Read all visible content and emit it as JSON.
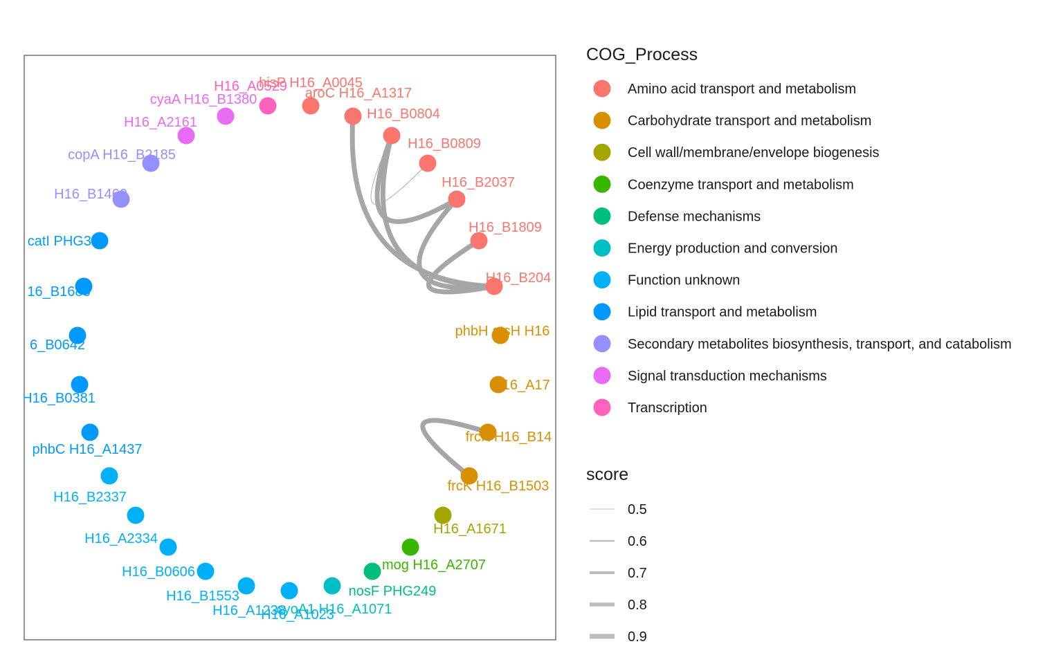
{
  "legend": {
    "color_title": "COG_Process",
    "size_title": "score",
    "categories": [
      {
        "label": "Amino acid transport and metabolism",
        "color": "#F8766D"
      },
      {
        "label": "Carbohydrate transport and metabolism",
        "color": "#D89000"
      },
      {
        "label": "Cell wall/membrane/envelope biogenesis",
        "color": "#A3A500"
      },
      {
        "label": "Coenzyme transport and metabolism",
        "color": "#39B600"
      },
      {
        "label": "Defense mechanisms",
        "color": "#00BF7D"
      },
      {
        "label": "Energy production and conversion",
        "color": "#00BFC4"
      },
      {
        "label": "Function unknown",
        "color": "#00B0F6"
      },
      {
        "label": "Lipid transport and metabolism",
        "color": "#0099FF"
      },
      {
        "label": "Secondary metabolites biosynthesis, transport, and catabolism",
        "color": "#9590FF"
      },
      {
        "label": "Signal transduction mechanisms",
        "color": "#E76BF3"
      },
      {
        "label": "Transcription",
        "color": "#FF62BC"
      }
    ],
    "scores": [
      "0.5",
      "0.6",
      "0.7",
      "0.8",
      "0.9"
    ]
  },
  "nodes": [
    {
      "label": "aroC H16_A1317",
      "category": 0
    },
    {
      "label": "H16_B0804",
      "category": 0
    },
    {
      "label": "H16_B0809",
      "category": 0
    },
    {
      "label": "H16_B2037",
      "category": 0
    },
    {
      "label": "H16_B1809",
      "category": 0
    },
    {
      "label": "H16_B204",
      "category": 0
    },
    {
      "label": "phbH atsH H16",
      "category": 1
    },
    {
      "label": "H16_A17",
      "category": 1
    },
    {
      "label": "frcK H16_B14",
      "category": 1
    },
    {
      "label": "frcK H16_B1503",
      "category": 1
    },
    {
      "label": "H16_A1671",
      "category": 2
    },
    {
      "label": "mog H16_A2707",
      "category": 3
    },
    {
      "label": "nosF PHG249",
      "category": 4
    },
    {
      "label": "cyoA1 H16_A1071",
      "category": 5
    },
    {
      "label": "H16_A1023",
      "category": 6
    },
    {
      "label": "H16_A1238",
      "category": 6
    },
    {
      "label": "H16_B1553",
      "category": 6
    },
    {
      "label": "H16_B0606",
      "category": 6
    },
    {
      "label": "H16_A2334",
      "category": 6
    },
    {
      "label": "H16_B2337",
      "category": 6
    },
    {
      "label": "phbC H16_A1437",
      "category": 7
    },
    {
      "label": "H16_B0381",
      "category": 7
    },
    {
      "label": "6_B0642",
      "category": 7
    },
    {
      "label": "16_B1683",
      "category": 7
    },
    {
      "label": "catI PHG383",
      "category": 7
    },
    {
      "label": "H16_B1460",
      "category": 8
    },
    {
      "label": "copA H16_B2185",
      "category": 8
    },
    {
      "label": "H16_A2161",
      "category": 9
    },
    {
      "label": "cyaA H16_B1380",
      "category": 9
    },
    {
      "label": "H16_A0529",
      "category": 10
    },
    {
      "label": "hisP H16_A0045",
      "category": 0
    }
  ],
  "edges": [
    {
      "from": 0,
      "to": 5,
      "score": 0.9
    },
    {
      "from": 1,
      "to": 2,
      "score": 0.5
    },
    {
      "from": 1,
      "to": 3,
      "score": 0.9
    },
    {
      "from": 1,
      "to": 5,
      "score": 0.9
    },
    {
      "from": 3,
      "to": 5,
      "score": 0.9
    },
    {
      "from": 4,
      "to": 5,
      "score": 0.9
    },
    {
      "from": 8,
      "to": 9,
      "score": 0.9
    }
  ]
}
